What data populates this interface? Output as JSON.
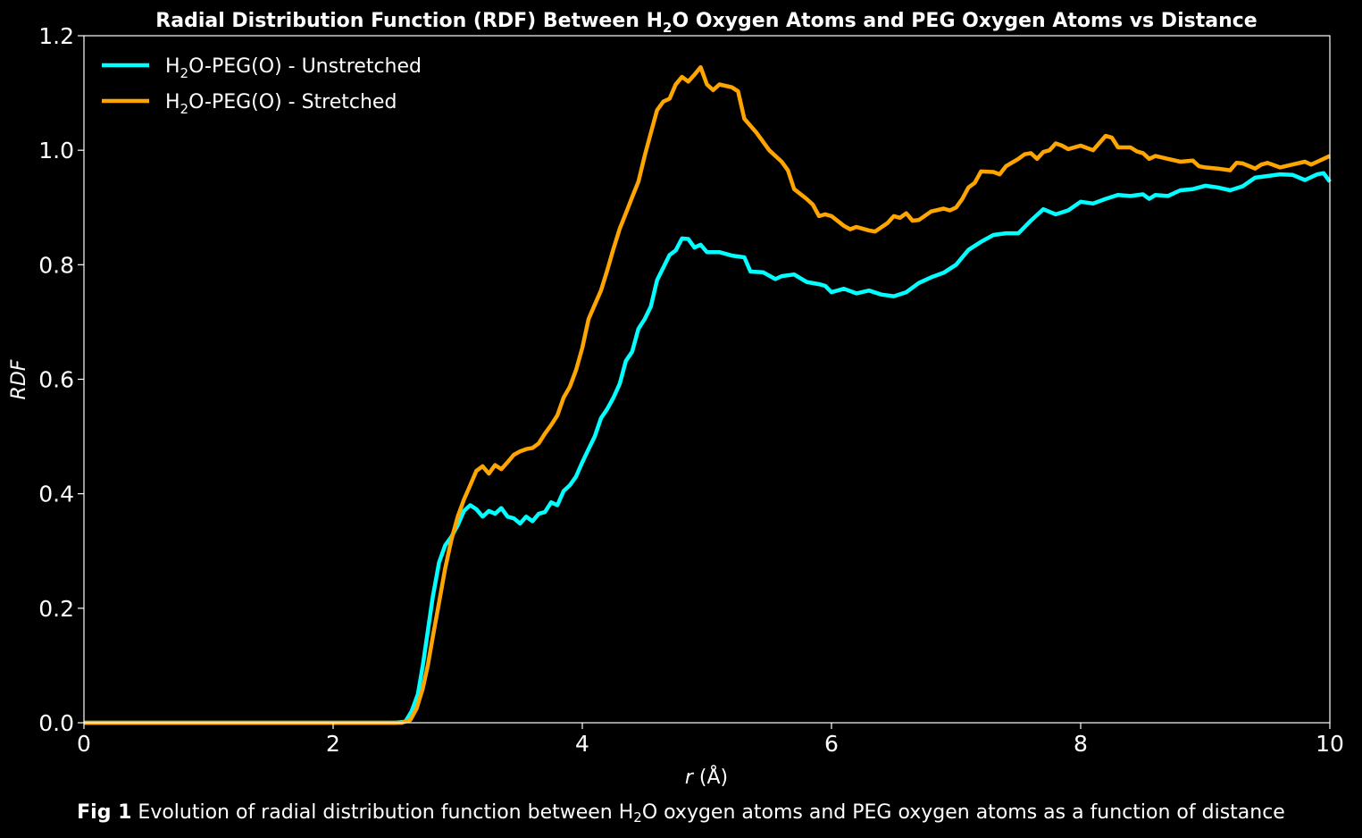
{
  "chart_data": {
    "type": "line",
    "title": {
      "pre": "Radial Distribution Function (RDF) Between H",
      "sub": "2",
      "post": "O Oxygen Atoms and PEG Oxygen Atoms vs Distance"
    },
    "xlabel": {
      "italic": "r",
      "rest": " (Å)"
    },
    "ylabel": "RDF",
    "xlim": [
      0,
      10
    ],
    "ylim": [
      0,
      1.2
    ],
    "xticks": [
      0,
      2,
      4,
      6,
      8,
      10
    ],
    "xtick_labels": [
      "0",
      "2",
      "4",
      "6",
      "8",
      "10"
    ],
    "yticks": [
      0.0,
      0.2,
      0.4,
      0.6,
      0.8,
      1.0,
      1.2
    ],
    "ytick_labels": [
      "0.0",
      "0.2",
      "0.4",
      "0.6",
      "0.8",
      "1.0",
      "1.2"
    ],
    "grid": false,
    "legend_position": "top-left",
    "series": [
      {
        "name": "H2O-PEG(O) - Unstretched",
        "label_pre": "H",
        "label_sub": "2",
        "label_post": "O-PEG(O) - Unstretched",
        "color": "#00ffff",
        "points": [
          [
            0,
            0
          ],
          [
            1,
            0
          ],
          [
            2,
            0
          ],
          [
            2.5,
            0
          ],
          [
            2.58,
            0.002
          ],
          [
            2.63,
            0.02
          ],
          [
            2.68,
            0.05
          ],
          [
            2.72,
            0.1
          ],
          [
            2.76,
            0.16
          ],
          [
            2.8,
            0.22
          ],
          [
            2.85,
            0.28
          ],
          [
            2.9,
            0.31
          ],
          [
            2.95,
            0.325
          ],
          [
            3.0,
            0.345
          ],
          [
            3.05,
            0.37
          ],
          [
            3.1,
            0.38
          ],
          [
            3.15,
            0.373
          ],
          [
            3.2,
            0.36
          ],
          [
            3.25,
            0.37
          ],
          [
            3.3,
            0.365
          ],
          [
            3.35,
            0.375
          ],
          [
            3.4,
            0.36
          ],
          [
            3.45,
            0.357
          ],
          [
            3.5,
            0.348
          ],
          [
            3.55,
            0.36
          ],
          [
            3.6,
            0.352
          ],
          [
            3.65,
            0.365
          ],
          [
            3.7,
            0.368
          ],
          [
            3.75,
            0.385
          ],
          [
            3.8,
            0.38
          ],
          [
            3.85,
            0.405
          ],
          [
            3.9,
            0.415
          ],
          [
            3.95,
            0.43
          ],
          [
            4.0,
            0.455
          ],
          [
            4.05,
            0.478
          ],
          [
            4.1,
            0.5
          ],
          [
            4.15,
            0.532
          ],
          [
            4.2,
            0.548
          ],
          [
            4.25,
            0.568
          ],
          [
            4.3,
            0.592
          ],
          [
            4.35,
            0.632
          ],
          [
            4.4,
            0.648
          ],
          [
            4.45,
            0.688
          ],
          [
            4.5,
            0.705
          ],
          [
            4.55,
            0.727
          ],
          [
            4.6,
            0.773
          ],
          [
            4.65,
            0.795
          ],
          [
            4.7,
            0.817
          ],
          [
            4.75,
            0.825
          ],
          [
            4.8,
            0.846
          ],
          [
            4.85,
            0.845
          ],
          [
            4.9,
            0.83
          ],
          [
            4.95,
            0.835
          ],
          [
            5.0,
            0.822
          ],
          [
            5.1,
            0.822
          ],
          [
            5.2,
            0.816
          ],
          [
            5.3,
            0.813
          ],
          [
            5.35,
            0.788
          ],
          [
            5.45,
            0.787
          ],
          [
            5.55,
            0.775
          ],
          [
            5.6,
            0.78
          ],
          [
            5.7,
            0.783
          ],
          [
            5.8,
            0.77
          ],
          [
            5.9,
            0.766
          ],
          [
            5.95,
            0.763
          ],
          [
            6.0,
            0.752
          ],
          [
            6.1,
            0.758
          ],
          [
            6.2,
            0.75
          ],
          [
            6.3,
            0.755
          ],
          [
            6.4,
            0.748
          ],
          [
            6.5,
            0.745
          ],
          [
            6.6,
            0.752
          ],
          [
            6.7,
            0.768
          ],
          [
            6.8,
            0.778
          ],
          [
            6.9,
            0.786
          ],
          [
            7.0,
            0.8
          ],
          [
            7.1,
            0.826
          ],
          [
            7.2,
            0.84
          ],
          [
            7.3,
            0.852
          ],
          [
            7.4,
            0.855
          ],
          [
            7.5,
            0.855
          ],
          [
            7.6,
            0.877
          ],
          [
            7.7,
            0.897
          ],
          [
            7.8,
            0.888
          ],
          [
            7.9,
            0.895
          ],
          [
            8.0,
            0.91
          ],
          [
            8.1,
            0.907
          ],
          [
            8.2,
            0.915
          ],
          [
            8.3,
            0.922
          ],
          [
            8.4,
            0.92
          ],
          [
            8.5,
            0.923
          ],
          [
            8.55,
            0.915
          ],
          [
            8.6,
            0.922
          ],
          [
            8.7,
            0.92
          ],
          [
            8.8,
            0.93
          ],
          [
            8.9,
            0.932
          ],
          [
            9.0,
            0.938
          ],
          [
            9.1,
            0.935
          ],
          [
            9.2,
            0.93
          ],
          [
            9.3,
            0.937
          ],
          [
            9.4,
            0.952
          ],
          [
            9.5,
            0.955
          ],
          [
            9.6,
            0.958
          ],
          [
            9.7,
            0.957
          ],
          [
            9.8,
            0.948
          ],
          [
            9.9,
            0.958
          ],
          [
            9.95,
            0.96
          ],
          [
            10.0,
            0.945
          ]
        ]
      },
      {
        "name": "H2O-PEG(O) - Stretched",
        "label_pre": "H",
        "label_sub": "2",
        "label_post": "O-PEG(O) - Stretched",
        "color": "#ffa500",
        "points": [
          [
            0,
            0
          ],
          [
            1,
            0
          ],
          [
            2,
            0
          ],
          [
            2.55,
            0
          ],
          [
            2.62,
            0.005
          ],
          [
            2.67,
            0.025
          ],
          [
            2.72,
            0.06
          ],
          [
            2.76,
            0.1
          ],
          [
            2.8,
            0.15
          ],
          [
            2.85,
            0.21
          ],
          [
            2.9,
            0.27
          ],
          [
            2.95,
            0.32
          ],
          [
            3.0,
            0.36
          ],
          [
            3.05,
            0.39
          ],
          [
            3.1,
            0.415
          ],
          [
            3.15,
            0.44
          ],
          [
            3.2,
            0.448
          ],
          [
            3.25,
            0.435
          ],
          [
            3.3,
            0.45
          ],
          [
            3.35,
            0.443
          ],
          [
            3.4,
            0.455
          ],
          [
            3.45,
            0.468
          ],
          [
            3.5,
            0.474
          ],
          [
            3.55,
            0.478
          ],
          [
            3.6,
            0.48
          ],
          [
            3.65,
            0.488
          ],
          [
            3.7,
            0.505
          ],
          [
            3.75,
            0.52
          ],
          [
            3.8,
            0.537
          ],
          [
            3.85,
            0.568
          ],
          [
            3.9,
            0.587
          ],
          [
            3.95,
            0.616
          ],
          [
            4.0,
            0.655
          ],
          [
            4.05,
            0.705
          ],
          [
            4.1,
            0.73
          ],
          [
            4.15,
            0.755
          ],
          [
            4.2,
            0.79
          ],
          [
            4.25,
            0.828
          ],
          [
            4.3,
            0.863
          ],
          [
            4.35,
            0.89
          ],
          [
            4.4,
            0.918
          ],
          [
            4.45,
            0.945
          ],
          [
            4.5,
            0.99
          ],
          [
            4.55,
            1.03
          ],
          [
            4.6,
            1.07
          ],
          [
            4.65,
            1.085
          ],
          [
            4.7,
            1.09
          ],
          [
            4.75,
            1.115
          ],
          [
            4.8,
            1.128
          ],
          [
            4.85,
            1.12
          ],
          [
            4.9,
            1.132
          ],
          [
            4.95,
            1.145
          ],
          [
            5.0,
            1.115
          ],
          [
            5.05,
            1.105
          ],
          [
            5.1,
            1.115
          ],
          [
            5.2,
            1.11
          ],
          [
            5.25,
            1.103
          ],
          [
            5.3,
            1.055
          ],
          [
            5.4,
            1.03
          ],
          [
            5.5,
            1.0
          ],
          [
            5.6,
            0.98
          ],
          [
            5.65,
            0.965
          ],
          [
            5.7,
            0.932
          ],
          [
            5.8,
            0.915
          ],
          [
            5.85,
            0.905
          ],
          [
            5.9,
            0.885
          ],
          [
            5.95,
            0.888
          ],
          [
            6.0,
            0.885
          ],
          [
            6.1,
            0.868
          ],
          [
            6.15,
            0.862
          ],
          [
            6.2,
            0.866
          ],
          [
            6.3,
            0.86
          ],
          [
            6.35,
            0.858
          ],
          [
            6.45,
            0.873
          ],
          [
            6.5,
            0.885
          ],
          [
            6.55,
            0.882
          ],
          [
            6.6,
            0.89
          ],
          [
            6.65,
            0.877
          ],
          [
            6.7,
            0.878
          ],
          [
            6.8,
            0.893
          ],
          [
            6.9,
            0.898
          ],
          [
            6.95,
            0.895
          ],
          [
            7.0,
            0.9
          ],
          [
            7.05,
            0.915
          ],
          [
            7.1,
            0.935
          ],
          [
            7.15,
            0.943
          ],
          [
            7.2,
            0.963
          ],
          [
            7.3,
            0.962
          ],
          [
            7.35,
            0.958
          ],
          [
            7.4,
            0.972
          ],
          [
            7.5,
            0.985
          ],
          [
            7.55,
            0.993
          ],
          [
            7.6,
            0.995
          ],
          [
            7.65,
            0.985
          ],
          [
            7.7,
            0.997
          ],
          [
            7.75,
            1.0
          ],
          [
            7.8,
            1.012
          ],
          [
            7.85,
            1.008
          ],
          [
            7.9,
            1.002
          ],
          [
            8.0,
            1.008
          ],
          [
            8.1,
            1.0
          ],
          [
            8.2,
            1.025
          ],
          [
            8.25,
            1.022
          ],
          [
            8.3,
            1.005
          ],
          [
            8.4,
            1.005
          ],
          [
            8.45,
            0.998
          ],
          [
            8.5,
            0.995
          ],
          [
            8.55,
            0.985
          ],
          [
            8.6,
            0.99
          ],
          [
            8.7,
            0.985
          ],
          [
            8.8,
            0.98
          ],
          [
            8.9,
            0.982
          ],
          [
            8.95,
            0.972
          ],
          [
            9.0,
            0.97
          ],
          [
            9.1,
            0.968
          ],
          [
            9.2,
            0.965
          ],
          [
            9.25,
            0.978
          ],
          [
            9.3,
            0.977
          ],
          [
            9.4,
            0.968
          ],
          [
            9.45,
            0.975
          ],
          [
            9.5,
            0.978
          ],
          [
            9.6,
            0.97
          ],
          [
            9.7,
            0.975
          ],
          [
            9.8,
            0.98
          ],
          [
            9.85,
            0.975
          ],
          [
            9.9,
            0.98
          ],
          [
            10.0,
            0.99
          ]
        ]
      }
    ]
  },
  "caption": {
    "fig_label": "Fig 1",
    "text_pre": " Evolution of radial distribution function between H",
    "text_sub": "2",
    "text_post": "O oxygen atoms and PEG oxygen atoms as a function of distance"
  }
}
